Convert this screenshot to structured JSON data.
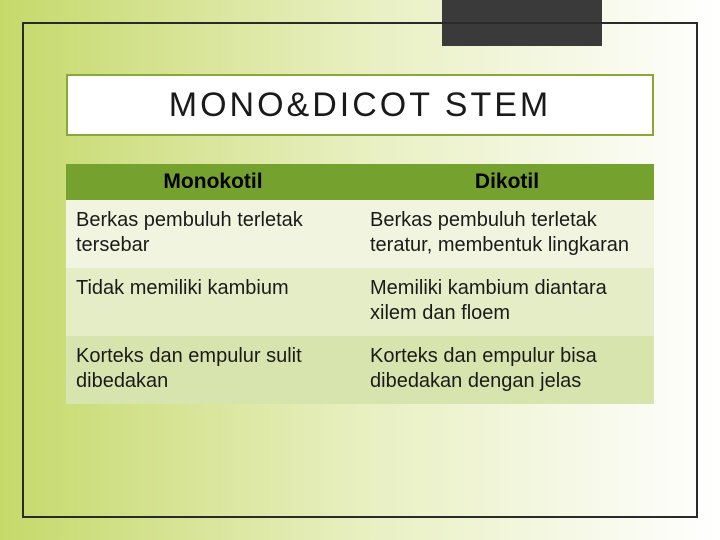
{
  "title": "MONO&DICOT STEM",
  "table": {
    "columns": [
      "Monokotil",
      "Dikotil"
    ],
    "rows": [
      {
        "left": "Berkas pembuluh terletak tersebar",
        "right": "Berkas pembuluh terletak teratur, membentuk lingkaran",
        "bg": "row-light"
      },
      {
        "left": "Tidak memiliki kambium",
        "right": "Memiliki kambium diantara xilem dan floem",
        "bg": "row-mid"
      },
      {
        "left": "Korteks dan empulur sulit dibedakan",
        "right": "Korteks dan empulur bisa dibedakan dengan jelas",
        "bg": "row-dark"
      }
    ],
    "header_bg": "#75a12e",
    "row_colors": {
      "row-light": "#f1f5e0",
      "row-mid": "#e5edc7",
      "row-dark": "#d8e4ad"
    },
    "title_fontsize": 34,
    "header_fontsize": 21,
    "cell_fontsize": 20
  },
  "palette": {
    "frame_border": "#2a2a2a",
    "corner_block": "#3a3a3a",
    "title_border": "#8aa83a",
    "bg_gradient_from": "#c5d96a",
    "bg_gradient_to": "#ffffff"
  }
}
